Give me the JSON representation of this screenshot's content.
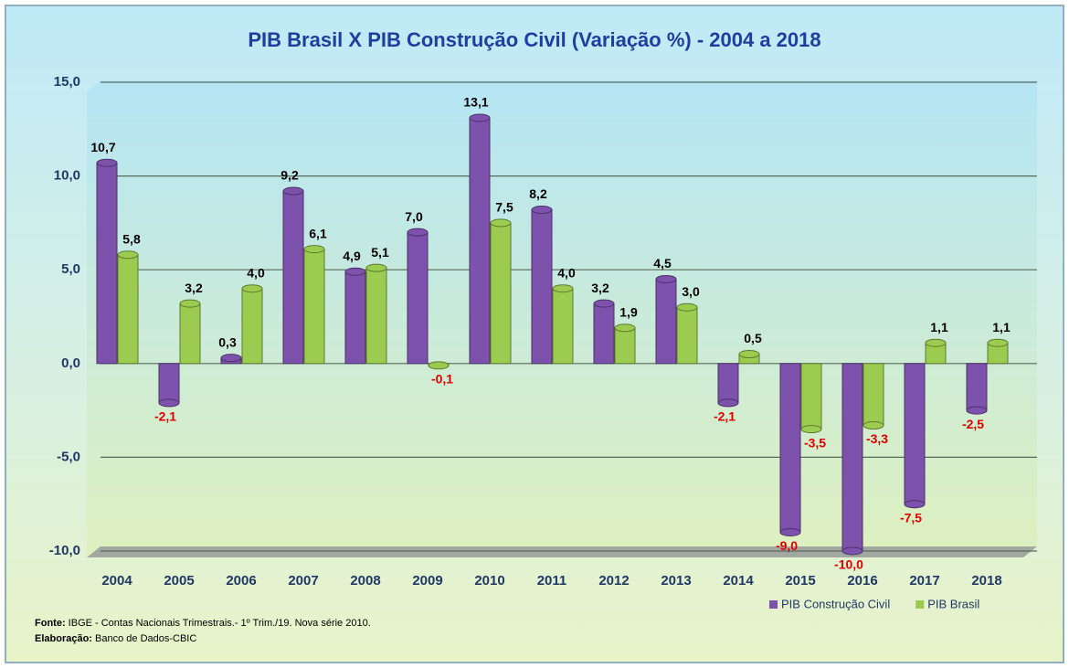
{
  "chart_data": {
    "type": "bar",
    "title": "PIB Brasil X PIB Construção Civil (Variação %) - 2004 a 2018",
    "categories": [
      "2004",
      "2005",
      "2006",
      "2007",
      "2008",
      "2009",
      "2010",
      "2011",
      "2012",
      "2013",
      "2014",
      "2015",
      "2016",
      "2017",
      "2018"
    ],
    "series": [
      {
        "name": "PIB Construção Civil",
        "color": "#7d52ad",
        "values": [
          10.7,
          -2.1,
          0.3,
          9.2,
          4.9,
          7.0,
          13.1,
          8.2,
          3.2,
          4.5,
          -2.1,
          -9.0,
          -10.0,
          -7.5,
          -2.5
        ],
        "value_labels": [
          "10,7",
          "-2,1",
          "0,3",
          "9,2",
          "4,9",
          "7,0",
          "13,1",
          "8,2",
          "3,2",
          "4,5",
          "-2,1",
          "-9,0",
          "-10,0",
          "-7,5",
          "-2,5"
        ]
      },
      {
        "name": "PIB Brasil",
        "color": "#9bcb4f",
        "values": [
          5.8,
          3.2,
          4.0,
          6.1,
          5.1,
          -0.1,
          7.5,
          4.0,
          1.9,
          3.0,
          0.5,
          -3.5,
          -3.3,
          1.1,
          1.1
        ],
        "value_labels": [
          "5,8",
          "3,2",
          "4,0",
          "6,1",
          "5,1",
          "-0,1",
          "7,5",
          "4,0",
          "1,9",
          "3,0",
          "0,5",
          "-3,5",
          "-3,3",
          "1,1",
          "1,1"
        ]
      }
    ],
    "ylim": [
      -10,
      15
    ],
    "yticks": [
      {
        "value": -10,
        "label": "-10,0"
      },
      {
        "value": -5,
        "label": "-5,0"
      },
      {
        "value": 0,
        "label": "0,0"
      },
      {
        "value": 5,
        "label": "5,0"
      },
      {
        "value": 10,
        "label": "10,0"
      },
      {
        "value": 15,
        "label": "15,0"
      }
    ],
    "grid": true,
    "legend": "bottom-right",
    "source_label": "Fonte:",
    "source": "IBGE - Contas Nacionais Trimestrais.- 1º Trim./19. Nova série 2010.",
    "credit_label": "Elaboração:",
    "credit": "Banco de Dados-CBIC"
  }
}
